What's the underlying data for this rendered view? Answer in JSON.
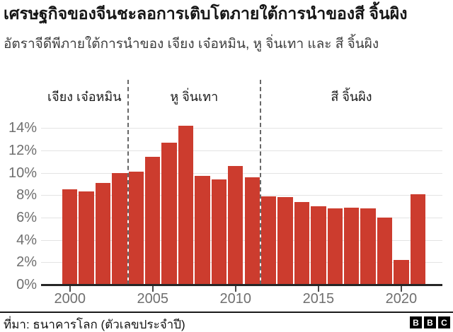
{
  "header": {
    "title": "เศรษฐกิจของจีนชะลอการเติบโตภายใต้การนำของสี จิ้นผิง",
    "subtitle": "อัตราจีดีพีภายใต้การนำของ เจียง เจ๋อหมิน, หู จิ่นเทา และ สี จิ้นผิง"
  },
  "chart_data": {
    "type": "bar",
    "title": "เศรษฐกิจของจีนชะลอการเติบโตภายใต้การนำของสี จิ้นผิง",
    "subtitle": "อัตราจีดีพีภายใต้การนำของ เจียง เจ๋อหมิน, หู จิ่นเทา และ สี จิ้นผิง",
    "x": [
      "2000",
      "2001",
      "2002",
      "2003",
      "2004",
      "2005",
      "2006",
      "2007",
      "2008",
      "2009",
      "2010",
      "2011",
      "2012",
      "2013",
      "2014",
      "2015",
      "2016",
      "2017",
      "2018",
      "2019",
      "2020",
      "2021"
    ],
    "values": [
      8.5,
      8.3,
      9.1,
      10.0,
      10.1,
      11.4,
      12.7,
      14.2,
      9.7,
      9.4,
      10.6,
      9.6,
      7.9,
      7.8,
      7.4,
      7.0,
      6.8,
      6.9,
      6.8,
      6.0,
      2.2,
      8.1
    ],
    "unit": "%",
    "ylim": [
      0,
      14
    ],
    "ytick_step": 2,
    "ytick_labels": [
      "0%",
      "2%",
      "4%",
      "6%",
      "8%",
      "10%",
      "12%",
      "14%"
    ],
    "xtick_labels": [
      "2000",
      "2005",
      "2010",
      "2015",
      "2020"
    ],
    "grid": true,
    "legend_position": "none",
    "bar_color": "#cc3c2e",
    "annotations": [
      {
        "label": "เจียง เจ๋อหมิน",
        "from_year": "2000",
        "to_year": "2003"
      },
      {
        "label": "หู จิ่นเทา",
        "from_year": "2004",
        "to_year": "2011"
      },
      {
        "label": "สี จิ้นผิง",
        "from_year": "2012",
        "to_year": "2021"
      }
    ]
  },
  "footer": {
    "source": "ที่มา: ธนาคารโลก (ตัวเลขประจำปี)",
    "logo_letters": [
      "B",
      "B",
      "C"
    ]
  }
}
